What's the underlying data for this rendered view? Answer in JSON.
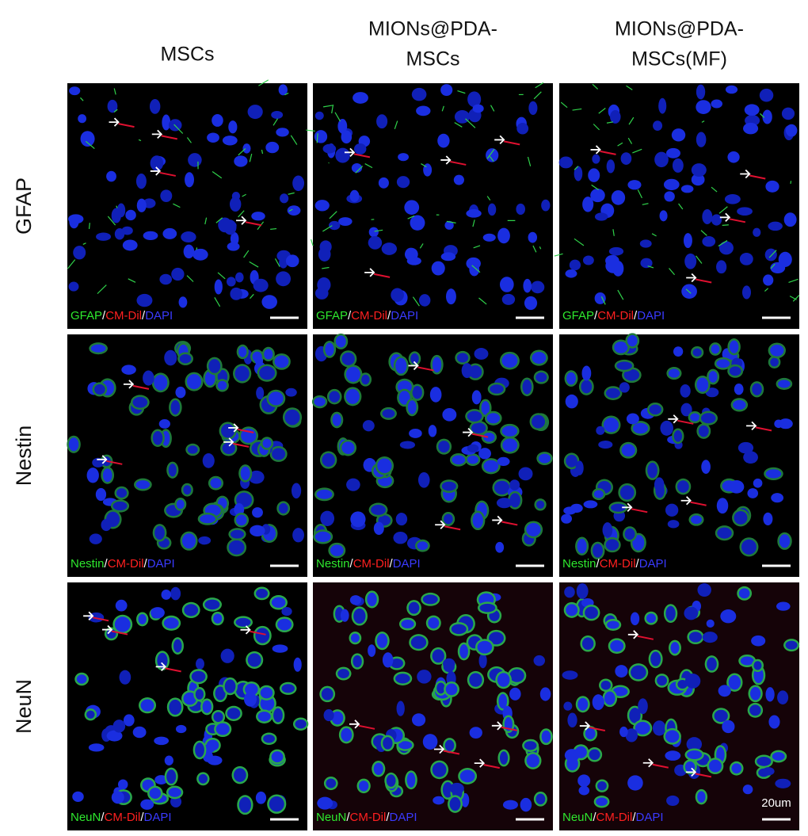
{
  "figure": {
    "columns": [
      {
        "lines": [
          "MSCs"
        ]
      },
      {
        "lines": [
          "MIONs@PDA-",
          "MSCs"
        ]
      },
      {
        "lines": [
          "MIONs@PDA-",
          "MSCs(MF)"
        ]
      }
    ],
    "rows": [
      {
        "label": "GFAP",
        "stain_label": [
          "GFAP",
          "/",
          "CM-Dil",
          "/",
          "DAPI"
        ]
      },
      {
        "label": "Nestin",
        "stain_label": [
          "Nestin",
          "/",
          "CM-Dil",
          "/",
          "DAPI"
        ]
      },
      {
        "label": "NeuN",
        "stain_label": [
          "NeuN",
          "/",
          "CM-Dil",
          "/",
          "DAPI"
        ]
      }
    ],
    "scale_bar_label": "20um"
  }
}
